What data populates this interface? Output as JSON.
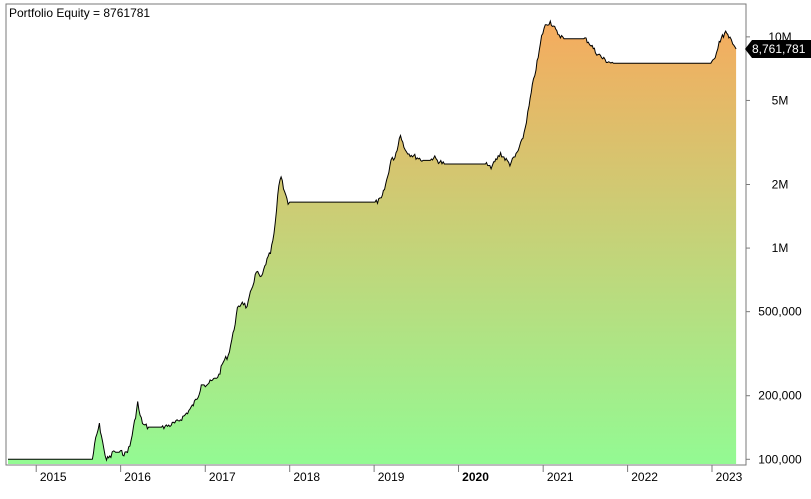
{
  "chart_data": {
    "type": "area",
    "title": "Portfolio Equity = 8761781",
    "xlabel": "",
    "ylabel": "",
    "y_scale": "log",
    "ylim": [
      95000,
      14000000
    ],
    "xlim": [
      "2014-09-01",
      "2023-05-15"
    ],
    "last_value_label": "8,761,781",
    "y_ticks": [
      {
        "value": 10000000,
        "label": "10M"
      },
      {
        "value": 5000000,
        "label": "5M"
      },
      {
        "value": 2000000,
        "label": "2M"
      },
      {
        "value": 1000000,
        "label": "1M"
      },
      {
        "value": 500000,
        "label": "500,000"
      },
      {
        "value": 200000,
        "label": "200,000"
      },
      {
        "value": 100000,
        "label": "100,000"
      }
    ],
    "x_ticks": [
      {
        "date": "2015-01-01",
        "label": "2015",
        "bold": false
      },
      {
        "date": "2016-01-01",
        "label": "2016",
        "bold": false
      },
      {
        "date": "2017-01-01",
        "label": "2017",
        "bold": false
      },
      {
        "date": "2018-01-01",
        "label": "2018",
        "bold": false
      },
      {
        "date": "2019-01-01",
        "label": "2019",
        "bold": false
      },
      {
        "date": "2020-01-01",
        "label": "2020",
        "bold": true
      },
      {
        "date": "2021-01-01",
        "label": "2021",
        "bold": false
      },
      {
        "date": "2022-01-01",
        "label": "2022",
        "bold": false
      },
      {
        "date": "2023-01-01",
        "label": "2023",
        "bold": false
      }
    ],
    "fill_gradient": {
      "top": "#f6ab5e",
      "bottom": "#93fa93"
    },
    "line_color": "#000000",
    "series": [
      {
        "dates": [
          "2014-09-01",
          "2015-09-01",
          "2015-09-15",
          "2015-10-01",
          "2015-10-10",
          "2015-10-20",
          "2015-11-01",
          "2015-11-20",
          "2015-12-01",
          "2015-12-10",
          "2015-12-20",
          "2016-01-01",
          "2016-01-20",
          "2016-02-10",
          "2016-03-01",
          "2016-03-15",
          "2016-03-25",
          "2016-04-10",
          "2016-05-01",
          "2016-06-01",
          "2016-07-01",
          "2016-08-01",
          "2016-09-01",
          "2016-10-01",
          "2016-11-01",
          "2016-11-15",
          "2016-12-01",
          "2016-12-15",
          "2017-01-01",
          "2017-02-01",
          "2017-03-01",
          "2017-03-20",
          "2017-04-10",
          "2017-05-01",
          "2017-05-20",
          "2017-06-10",
          "2017-07-01",
          "2017-07-20",
          "2017-08-10",
          "2017-09-01",
          "2017-09-20",
          "2017-10-10",
          "2017-10-25",
          "2017-11-05",
          "2017-11-15",
          "2017-11-25",
          "2017-12-05",
          "2017-12-15",
          "2017-12-25",
          "2018-01-01",
          "2018-02-01",
          "2018-06-01",
          "2018-12-01",
          "2019-01-10",
          "2019-02-01",
          "2019-02-15",
          "2019-03-01",
          "2019-03-15",
          "2019-04-01",
          "2019-04-15",
          "2019-04-25",
          "2019-05-10",
          "2019-06-01",
          "2019-07-01",
          "2019-08-01",
          "2019-09-01",
          "2019-09-15",
          "2019-10-01",
          "2019-11-01",
          "2019-12-01",
          "2020-01-01",
          "2020-02-01",
          "2020-03-01",
          "2020-04-01",
          "2020-05-01",
          "2020-05-15",
          "2020-06-01",
          "2020-06-15",
          "2020-07-01",
          "2020-07-20",
          "2020-08-10",
          "2020-09-01",
          "2020-09-15",
          "2020-10-01",
          "2020-10-15",
          "2020-11-01",
          "2020-11-15",
          "2020-12-01",
          "2020-12-15",
          "2020-12-25",
          "2021-01-05",
          "2021-01-15",
          "2021-02-01",
          "2021-02-15",
          "2021-03-01",
          "2021-04-01",
          "2021-05-01",
          "2021-06-01",
          "2021-06-15",
          "2021-07-01",
          "2021-07-15",
          "2021-08-01",
          "2021-08-15",
          "2021-09-01",
          "2021-09-15",
          "2021-10-01",
          "2021-10-15",
          "2021-11-01",
          "2022-01-01",
          "2022-06-01",
          "2022-12-01",
          "2023-01-01",
          "2023-01-10",
          "2023-01-20",
          "2023-02-01",
          "2023-02-15",
          "2023-03-01",
          "2023-03-15",
          "2023-03-25",
          "2023-04-01",
          "2023-04-15"
        ],
        "values": [
          100000,
          100000,
          125000,
          145000,
          130000,
          112000,
          100000,
          103000,
          110000,
          108000,
          108000,
          108000,
          106000,
          115000,
          150000,
          185000,
          160000,
          145000,
          142000,
          142000,
          142000,
          145000,
          150000,
          160000,
          175000,
          185000,
          200000,
          225000,
          225000,
          235000,
          250000,
          290000,
          310000,
          390000,
          510000,
          560000,
          520000,
          640000,
          770000,
          720000,
          850000,
          950000,
          1150000,
          1500000,
          2000000,
          2200000,
          1950000,
          1800000,
          1600000,
          1650000,
          1650000,
          1650000,
          1650000,
          1650000,
          1700000,
          1900000,
          2200000,
          2600000,
          2700000,
          3100000,
          3500000,
          3000000,
          2800000,
          2700000,
          2600000,
          2600000,
          2700000,
          2600000,
          2500000,
          2500000,
          2500000,
          2500000,
          2500000,
          2500000,
          2500000,
          2400000,
          2500000,
          2650000,
          2800000,
          2650000,
          2500000,
          2700000,
          2900000,
          3200000,
          3700000,
          4700000,
          5800000,
          7100000,
          8500000,
          10000000,
          11000000,
          11500000,
          11800000,
          11200000,
          10500000,
          9800000,
          9800000,
          9800000,
          9800000,
          9800000,
          9500000,
          9000000,
          8500000,
          8200000,
          7900000,
          7700000,
          7600000,
          7500000,
          7500000,
          7500000,
          7500000,
          7500000,
          7800000,
          8500000,
          9500000,
          10000000,
          10500000,
          9800000,
          10000000,
          9400000,
          8761781
        ]
      }
    ]
  }
}
